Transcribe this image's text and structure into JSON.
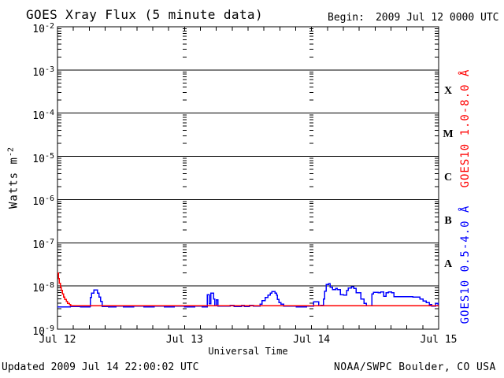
{
  "header": {
    "title": "GOES Xray Flux (5 minute data)",
    "begin_label": "Begin:",
    "begin_value": "2009 Jul 12 0000 UTC"
  },
  "footer": {
    "updated": "Updated 2009 Jul 14 22:00:02 UTC",
    "source": "NOAA/SWPC Boulder, CO USA"
  },
  "colors": {
    "axis": "#000000",
    "long_channel": "#ff0000",
    "short_channel": "#0000ff"
  },
  "chart_data": {
    "type": "line",
    "title": "GOES Xray Flux (5 minute data)",
    "xlabel": "Universal Time",
    "ylabel_base": "Watts m",
    "ylabel_exponent": "-2",
    "y_scale": "log",
    "y_exponent_top": -2,
    "y_exponent_bottom": -9,
    "x_range_days": [
      0,
      3
    ],
    "x_ticks": [
      "Jul 12",
      "Jul 13",
      "Jul 14",
      "Jul 15"
    ],
    "minor_x_tick_hours": 3,
    "grid": "solid horizontal line at each decade; dotted vertical tick columns at day boundaries",
    "flare_classes": [
      {
        "label": "X",
        "center_exponent": -3.5
      },
      {
        "label": "M",
        "center_exponent": -4.5
      },
      {
        "label": "C",
        "center_exponent": -5.5
      },
      {
        "label": "B",
        "center_exponent": -6.5
      },
      {
        "label": "A",
        "center_exponent": -7.5
      }
    ],
    "series": [
      {
        "name": "GOES10 1.0-8.0 Å",
        "color": "#ff0000",
        "points": [
          [
            0.0,
            2e-08
          ],
          [
            0.0075,
            1.5e-08
          ],
          [
            0.015,
            1.15e-08
          ],
          [
            0.0225,
            9.3e-09
          ],
          [
            0.03,
            7.9e-09
          ],
          [
            0.0375,
            6.6e-09
          ],
          [
            0.047,
            5.6e-09
          ],
          [
            0.056,
            4.9e-09
          ],
          [
            0.068,
            4.4e-09
          ],
          [
            0.08,
            4e-09
          ],
          [
            0.093,
            3.7e-09
          ],
          [
            0.102,
            3.5e-09
          ],
          [
            0.5,
            3.5e-09
          ],
          [
            1.0,
            3.5e-09
          ],
          [
            1.5,
            3.5e-09
          ],
          [
            2.0,
            3.5e-09
          ],
          [
            2.5,
            3.5e-09
          ],
          [
            3.0,
            3.5e-09
          ]
        ]
      },
      {
        "name": "GOES10 0.5-4.0 Å",
        "color": "#0000ff",
        "points": [
          [
            0.0,
            3.25e-09
          ],
          [
            0.1,
            3.35e-09
          ],
          [
            0.18,
            3.25e-09
          ],
          [
            0.2541,
            3.35e-09
          ],
          [
            0.2572,
            5.4e-09
          ],
          [
            0.2665,
            6.9e-09
          ],
          [
            0.2851,
            8.1e-09
          ],
          [
            0.313,
            6.9e-09
          ],
          [
            0.3254,
            5.6e-09
          ],
          [
            0.3378,
            4.4e-09
          ],
          [
            0.3502,
            3.35e-09
          ],
          [
            0.4,
            3.25e-09
          ],
          [
            0.46,
            3.4e-09
          ],
          [
            0.52,
            3.3e-09
          ],
          [
            0.6,
            3.4e-09
          ],
          [
            0.68,
            3.3e-09
          ],
          [
            0.76,
            3.4e-09
          ],
          [
            0.84,
            3.3e-09
          ],
          [
            0.92,
            3.4e-09
          ],
          [
            1.0,
            3.3e-09
          ],
          [
            1.08,
            3.4e-09
          ],
          [
            1.14,
            3.3e-09
          ],
          [
            1.1777,
            6.3e-09
          ],
          [
            1.1932,
            3.9e-09
          ],
          [
            1.2056,
            6.9e-09
          ],
          [
            1.2273,
            5e-09
          ],
          [
            1.2366,
            3.5e-09
          ],
          [
            1.249,
            4.8e-09
          ],
          [
            1.2614,
            3.4e-09
          ],
          [
            1.3,
            3.4e-09
          ],
          [
            1.36,
            3.6e-09
          ],
          [
            1.39,
            3.35e-09
          ],
          [
            1.45,
            3.6e-09
          ],
          [
            1.47,
            3.35e-09
          ],
          [
            1.51,
            3.6e-09
          ],
          [
            1.54,
            3.4e-09
          ],
          [
            1.593,
            3.8e-09
          ],
          [
            1.611,
            4.6e-09
          ],
          [
            1.636,
            5.4e-09
          ],
          [
            1.655,
            6.2e-09
          ],
          [
            1.674,
            6.9e-09
          ],
          [
            1.686,
            7.5e-09
          ],
          [
            1.711,
            6.9e-09
          ],
          [
            1.723,
            6.2e-09
          ],
          [
            1.732,
            4.9e-09
          ],
          [
            1.742,
            4.1e-09
          ],
          [
            1.76,
            3.8e-09
          ],
          [
            1.779,
            3.45e-09
          ],
          [
            1.8,
            3.4e-09
          ],
          [
            1.88,
            3.3e-09
          ],
          [
            1.96,
            3.4e-09
          ],
          [
            2.016,
            4.35e-09
          ],
          [
            2.055,
            3.5e-09
          ],
          [
            2.07,
            3.55e-09
          ],
          [
            2.0923,
            5e-09
          ],
          [
            2.1016,
            7.6e-09
          ],
          [
            2.114,
            1.08e-08
          ],
          [
            2.1326,
            1.12e-08
          ],
          [
            2.145,
            9.3e-09
          ],
          [
            2.1636,
            8.3e-09
          ],
          [
            2.1884,
            8.8e-09
          ],
          [
            2.2008,
            8.2e-09
          ],
          [
            2.2256,
            6.3e-09
          ],
          [
            2.2504,
            6.1e-09
          ],
          [
            2.2752,
            8e-09
          ],
          [
            2.2876,
            9e-09
          ],
          [
            2.3124,
            9.6e-09
          ],
          [
            2.331,
            8.8e-09
          ],
          [
            2.3496,
            7e-09
          ],
          [
            2.3868,
            5e-09
          ],
          [
            2.4116,
            4e-09
          ],
          [
            2.4302,
            3.5e-09
          ],
          [
            2.4736,
            6.6e-09
          ],
          [
            2.486,
            7.2e-09
          ],
          [
            2.5232,
            7e-09
          ],
          [
            2.5418,
            7.3e-09
          ],
          [
            2.5666,
            5.8e-09
          ],
          [
            2.5852,
            7e-09
          ],
          [
            2.6038,
            7.3e-09
          ],
          [
            2.6286,
            7e-09
          ],
          [
            2.6472,
            5.7e-09
          ],
          [
            2.796,
            5.6e-09
          ],
          [
            2.8518,
            5e-09
          ],
          [
            2.8766,
            4.5e-09
          ],
          [
            2.9014,
            4.1e-09
          ],
          [
            2.9262,
            3.7e-09
          ],
          [
            2.9448,
            3.45e-09
          ],
          [
            2.9758,
            4e-09
          ],
          [
            2.9944,
            3.6e-09
          ],
          [
            3.0,
            3.6e-09
          ]
        ]
      }
    ]
  }
}
